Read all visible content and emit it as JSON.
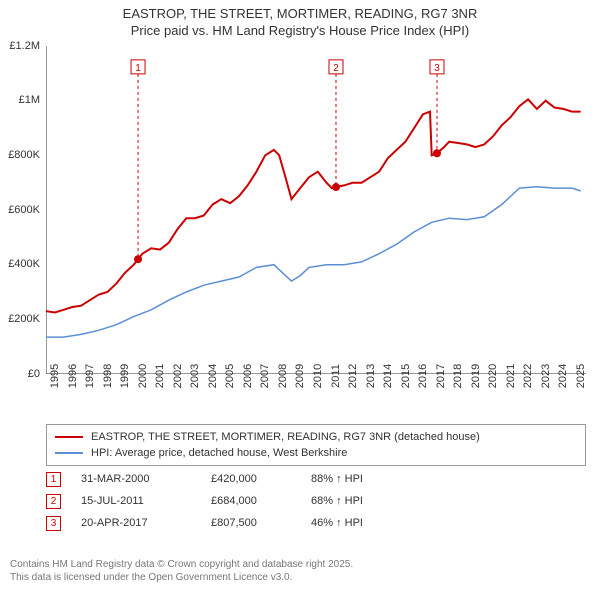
{
  "title": "EASTROP, THE STREET, MORTIMER, READING, RG7 3NR",
  "subtitle": "Price paid vs. HM Land Registry's House Price Index (HPI)",
  "chart": {
    "type": "line",
    "background_color": "#ffffff",
    "xlim": [
      1995,
      2025.8
    ],
    "ylim": [
      0,
      1200000
    ],
    "y_ticks": [
      0,
      200000,
      400000,
      600000,
      800000,
      1000000,
      1200000
    ],
    "y_tick_labels": [
      "£0",
      "£200K",
      "£400K",
      "£600K",
      "£800K",
      "£1M",
      "£1.2M"
    ],
    "x_ticks": [
      1995,
      1996,
      1997,
      1998,
      1999,
      2000,
      2001,
      2002,
      2003,
      2004,
      2005,
      2006,
      2007,
      2008,
      2009,
      2010,
      2011,
      2012,
      2013,
      2014,
      2015,
      2016,
      2017,
      2018,
      2019,
      2020,
      2021,
      2022,
      2023,
      2024,
      2025
    ],
    "axis_color": "#333333",
    "tick_fontsize": 11,
    "series": [
      {
        "name": "price_paid",
        "label": "EASTROP, THE STREET, MORTIMER, READING, RG7 3NR (detached house)",
        "color": "#cc0000",
        "line_width": 2,
        "data": [
          [
            1995,
            230000
          ],
          [
            1995.5,
            225000
          ],
          [
            1996,
            235000
          ],
          [
            1996.5,
            245000
          ],
          [
            1997,
            250000
          ],
          [
            1997.5,
            270000
          ],
          [
            1998,
            290000
          ],
          [
            1998.5,
            300000
          ],
          [
            1999,
            330000
          ],
          [
            1999.5,
            370000
          ],
          [
            2000,
            400000
          ],
          [
            2000.25,
            420000
          ],
          [
            2000.5,
            440000
          ],
          [
            2001,
            460000
          ],
          [
            2001.5,
            455000
          ],
          [
            2002,
            480000
          ],
          [
            2002.5,
            530000
          ],
          [
            2003,
            570000
          ],
          [
            2003.5,
            570000
          ],
          [
            2004,
            580000
          ],
          [
            2004.5,
            620000
          ],
          [
            2005,
            640000
          ],
          [
            2005.5,
            625000
          ],
          [
            2006,
            650000
          ],
          [
            2006.5,
            690000
          ],
          [
            2007,
            740000
          ],
          [
            2007.5,
            800000
          ],
          [
            2008,
            820000
          ],
          [
            2008.3,
            800000
          ],
          [
            2008.7,
            710000
          ],
          [
            2009,
            640000
          ],
          [
            2009.5,
            680000
          ],
          [
            2010,
            720000
          ],
          [
            2010.5,
            740000
          ],
          [
            2011,
            700000
          ],
          [
            2011.3,
            680000
          ],
          [
            2011.54,
            684000
          ],
          [
            2012,
            690000
          ],
          [
            2012.5,
            700000
          ],
          [
            2013,
            700000
          ],
          [
            2013.5,
            720000
          ],
          [
            2014,
            740000
          ],
          [
            2014.5,
            790000
          ],
          [
            2015,
            820000
          ],
          [
            2015.5,
            850000
          ],
          [
            2016,
            900000
          ],
          [
            2016.5,
            950000
          ],
          [
            2016.9,
            960000
          ],
          [
            2017,
            800000
          ],
          [
            2017.3,
            807500
          ],
          [
            2017.7,
            830000
          ],
          [
            2018,
            850000
          ],
          [
            2018.5,
            845000
          ],
          [
            2019,
            840000
          ],
          [
            2019.5,
            830000
          ],
          [
            2020,
            840000
          ],
          [
            2020.5,
            870000
          ],
          [
            2021,
            910000
          ],
          [
            2021.5,
            940000
          ],
          [
            2022,
            980000
          ],
          [
            2022.5,
            1005000
          ],
          [
            2023,
            970000
          ],
          [
            2023.5,
            1000000
          ],
          [
            2024,
            975000
          ],
          [
            2024.5,
            970000
          ],
          [
            2025,
            960000
          ],
          [
            2025.5,
            960000
          ]
        ]
      },
      {
        "name": "hpi",
        "label": "HPI: Average price, detached house, West Berkshire",
        "color": "#5b8fd6",
        "line_width": 1.5,
        "data": [
          [
            1995,
            135000
          ],
          [
            1996,
            135000
          ],
          [
            1997,
            145000
          ],
          [
            1998,
            160000
          ],
          [
            1999,
            180000
          ],
          [
            2000,
            210000
          ],
          [
            2001,
            235000
          ],
          [
            2002,
            270000
          ],
          [
            2003,
            300000
          ],
          [
            2004,
            325000
          ],
          [
            2005,
            340000
          ],
          [
            2006,
            355000
          ],
          [
            2007,
            390000
          ],
          [
            2008,
            400000
          ],
          [
            2008.5,
            370000
          ],
          [
            2009,
            340000
          ],
          [
            2009.5,
            360000
          ],
          [
            2010,
            390000
          ],
          [
            2011,
            400000
          ],
          [
            2012,
            400000
          ],
          [
            2013,
            410000
          ],
          [
            2014,
            440000
          ],
          [
            2015,
            475000
          ],
          [
            2016,
            520000
          ],
          [
            2017,
            555000
          ],
          [
            2018,
            570000
          ],
          [
            2019,
            565000
          ],
          [
            2020,
            575000
          ],
          [
            2021,
            620000
          ],
          [
            2022,
            680000
          ],
          [
            2023,
            685000
          ],
          [
            2024,
            680000
          ],
          [
            2025,
            680000
          ],
          [
            2025.5,
            670000
          ]
        ]
      }
    ],
    "markers": [
      {
        "n": "1",
        "x": 2000.25,
        "y": 420000,
        "date": "31-MAR-2000",
        "price": "£420,000",
        "pct": "88% ↑ HPI"
      },
      {
        "n": "2",
        "x": 2011.54,
        "y": 684000,
        "date": "15-JUL-2011",
        "price": "£684,000",
        "pct": "68% ↑ HPI"
      },
      {
        "n": "3",
        "x": 2017.3,
        "y": 807500,
        "date": "20-APR-2017",
        "price": "£807,500",
        "pct": "46% ↑ HPI"
      }
    ],
    "marker_color": "#cc0000",
    "marker_line_dash": "3,3",
    "marker_vline_top_y": 1120000
  },
  "footer": {
    "line1": "Contains HM Land Registry data © Crown copyright and database right 2025.",
    "line2": "This data is licensed under the Open Government Licence v3.0."
  }
}
